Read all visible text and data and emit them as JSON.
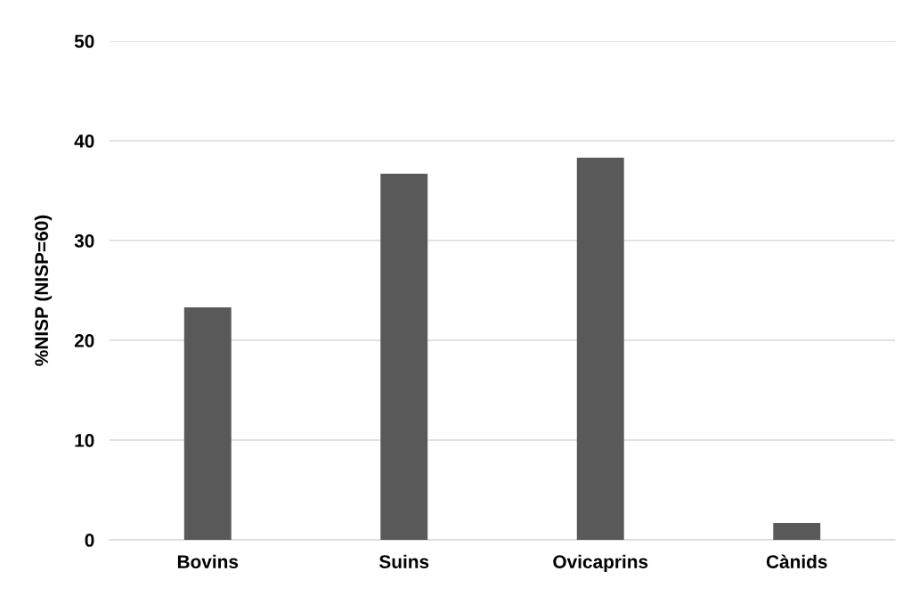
{
  "chart_data": {
    "type": "bar",
    "ylabel": "%NISP (NISP=60)",
    "categories": [
      "Bovins",
      "Suins",
      "Ovicaprins",
      "Cànids"
    ],
    "values": [
      23.3,
      36.7,
      38.3,
      1.7
    ],
    "color": "#595959",
    "ylim": [
      0,
      50
    ],
    "yticks": [
      0,
      10,
      20,
      30,
      40,
      50
    ],
    "grid": "y"
  }
}
